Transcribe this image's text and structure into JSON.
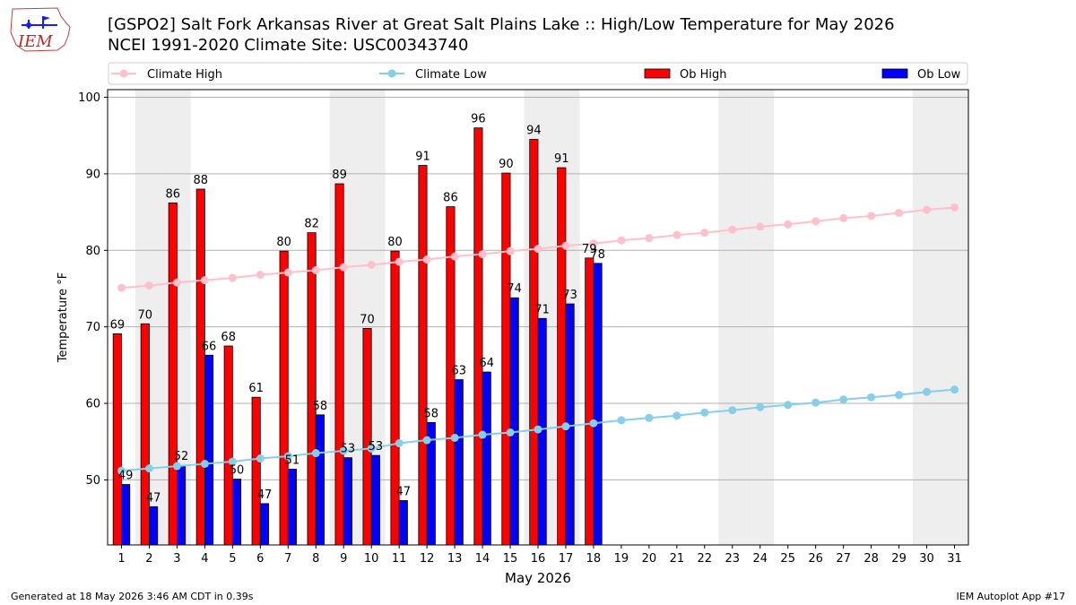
{
  "header": {
    "title_line1": "[GSPO2] Salt Fork Arkansas River at Great Salt Plains Lake :: High/Low Temperature for May 2026",
    "title_line2": "NCEI 1991-2020 Climate Site: USC00343740",
    "logo_text": "IEM"
  },
  "footer": {
    "generated": "Generated at 18 May 2026 3:46 AM CDT in 0.39s",
    "app": "IEM Autoplot App #17"
  },
  "colors": {
    "climate_high": "#ffc0cb",
    "climate_low": "#87ceeb",
    "ob_high": "#ff0000",
    "ob_low": "#0000ff",
    "weekend_shade": "#eeeeee",
    "grid": "#b0b0b0"
  },
  "chart_data": {
    "type": "bar",
    "xlabel": "May 2026",
    "ylabel": "Temperature °F",
    "ylim": [
      41.5,
      101
    ],
    "xlim": [
      0.5,
      31.5
    ],
    "yticks": [
      50,
      60,
      70,
      80,
      90,
      100
    ],
    "grid": "horizontal",
    "legend_placement": "top",
    "days": [
      1,
      2,
      3,
      4,
      5,
      6,
      7,
      8,
      9,
      10,
      11,
      12,
      13,
      14,
      15,
      16,
      17,
      18,
      19,
      20,
      21,
      22,
      23,
      24,
      25,
      26,
      27,
      28,
      29,
      30,
      31
    ],
    "weekend_days": [
      2,
      3,
      9,
      10,
      16,
      17,
      23,
      24,
      30,
      31
    ],
    "series": [
      {
        "name": "Climate High",
        "kind": "line",
        "values": [
          75.1,
          75.4,
          75.8,
          76.1,
          76.4,
          76.8,
          77.1,
          77.4,
          77.8,
          78.1,
          78.5,
          78.8,
          79.2,
          79.5,
          79.9,
          80.2,
          80.6,
          80.9,
          81.3,
          81.6,
          82.0,
          82.3,
          82.7,
          83.1,
          83.4,
          83.8,
          84.2,
          84.5,
          84.9,
          85.3,
          85.6
        ]
      },
      {
        "name": "Climate Low",
        "kind": "line",
        "values": [
          51.2,
          51.5,
          51.8,
          52.1,
          52.4,
          52.8,
          53.1,
          53.5,
          53.8,
          54.1,
          54.8,
          55.2,
          55.5,
          55.9,
          56.2,
          56.6,
          57.0,
          57.4,
          57.8,
          58.1,
          58.4,
          58.8,
          59.1,
          59.5,
          59.8,
          60.1,
          60.5,
          60.8,
          61.1,
          61.5,
          61.8
        ]
      },
      {
        "name": "Ob High",
        "kind": "bar",
        "values": [
          69.1,
          70.4,
          86.2,
          88.0,
          67.5,
          60.8,
          79.9,
          82.3,
          88.7,
          69.8,
          79.9,
          91.1,
          85.7,
          96.0,
          90.1,
          94.5,
          90.8,
          79.0
        ],
        "labels": [
          "69",
          "70",
          "86",
          "88",
          "68",
          "61",
          "80",
          "82",
          "89",
          "70",
          "80",
          "91",
          "86",
          "96",
          "90",
          "94",
          "91",
          "79"
        ]
      },
      {
        "name": "Ob Low",
        "kind": "bar",
        "values": [
          49.4,
          46.5,
          51.9,
          66.3,
          50.1,
          46.9,
          51.4,
          58.5,
          52.9,
          53.2,
          47.3,
          57.5,
          63.1,
          64.1,
          73.8,
          71.1,
          73.0,
          78.3
        ],
        "labels": [
          "49",
          "47",
          "52",
          "66",
          "50",
          "47",
          "51",
          "58",
          "53",
          "53",
          "47",
          "58",
          "63",
          "64",
          "74",
          "71",
          "73",
          "78"
        ]
      }
    ]
  }
}
